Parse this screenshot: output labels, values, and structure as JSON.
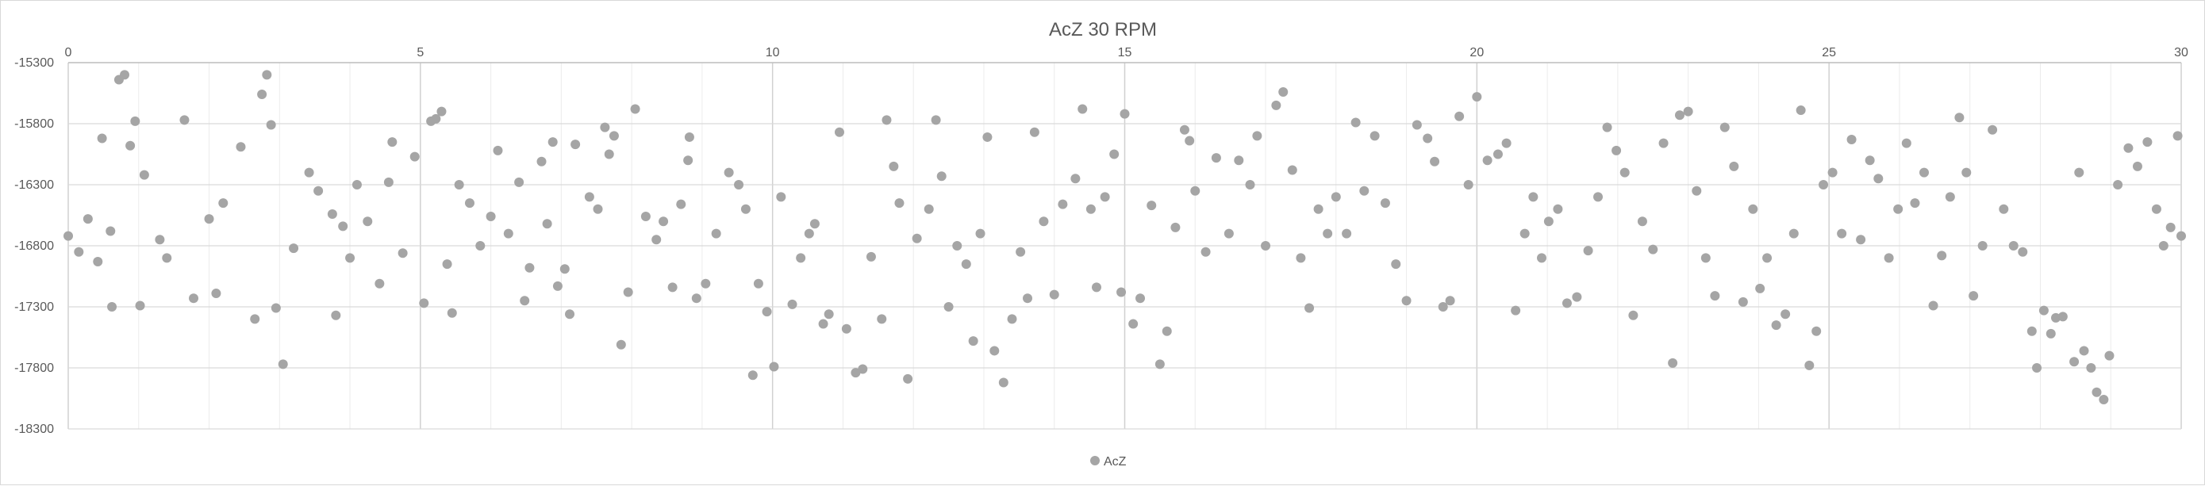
{
  "chart_data": {
    "type": "scatter",
    "title": "AcZ 30 RPM",
    "xlabel": "",
    "ylabel": "",
    "xlim": [
      0,
      30
    ],
    "ylim": [
      -18300,
      -15300
    ],
    "x_ticks": [
      "0",
      "5",
      "10",
      "15",
      "20",
      "25",
      "30"
    ],
    "y_ticks": [
      "-15300",
      "-15800",
      "-16300",
      "-16800",
      "-17300",
      "-17800",
      "-18300"
    ],
    "x_minor_step": 1,
    "grid": true,
    "legend": "bottom",
    "series": [
      {
        "name": "AcZ",
        "color": "#a5a5a5",
        "points": [
          [
            0.0,
            -16720
          ],
          [
            0.15,
            -16850
          ],
          [
            0.28,
            -16580
          ],
          [
            0.42,
            -16930
          ],
          [
            0.48,
            -15920
          ],
          [
            0.6,
            -16680
          ],
          [
            0.62,
            -17300
          ],
          [
            0.72,
            -15440
          ],
          [
            0.8,
            -15400
          ],
          [
            0.88,
            -15980
          ],
          [
            0.95,
            -15780
          ],
          [
            1.02,
            -17290
          ],
          [
            1.08,
            -16220
          ],
          [
            1.3,
            -16750
          ],
          [
            1.4,
            -16900
          ],
          [
            1.65,
            -15770
          ],
          [
            1.78,
            -17230
          ],
          [
            2.0,
            -16580
          ],
          [
            2.1,
            -17190
          ],
          [
            2.2,
            -16450
          ],
          [
            2.45,
            -15990
          ],
          [
            2.65,
            -17400
          ],
          [
            2.75,
            -15560
          ],
          [
            2.82,
            -15400
          ],
          [
            2.88,
            -15810
          ],
          [
            2.95,
            -17310
          ],
          [
            3.05,
            -17770
          ],
          [
            3.2,
            -16820
          ],
          [
            3.42,
            -16200
          ],
          [
            3.55,
            -16350
          ],
          [
            3.75,
            -16540
          ],
          [
            3.8,
            -17370
          ],
          [
            3.9,
            -16640
          ],
          [
            4.0,
            -16900
          ],
          [
            4.1,
            -16300
          ],
          [
            4.25,
            -16600
          ],
          [
            4.42,
            -17110
          ],
          [
            4.55,
            -16280
          ],
          [
            4.6,
            -15950
          ],
          [
            4.75,
            -16860
          ],
          [
            4.92,
            -16070
          ],
          [
            5.05,
            -17270
          ],
          [
            5.15,
            -15780
          ],
          [
            5.22,
            -15760
          ],
          [
            5.3,
            -15700
          ],
          [
            5.38,
            -16950
          ],
          [
            5.45,
            -17350
          ],
          [
            5.55,
            -16300
          ],
          [
            5.7,
            -16450
          ],
          [
            5.85,
            -16800
          ],
          [
            6.0,
            -16560
          ],
          [
            6.1,
            -16020
          ],
          [
            6.25,
            -16700
          ],
          [
            6.4,
            -16280
          ],
          [
            6.48,
            -17250
          ],
          [
            6.55,
            -16980
          ],
          [
            6.72,
            -16110
          ],
          [
            6.8,
            -16620
          ],
          [
            6.88,
            -15950
          ],
          [
            6.95,
            -17130
          ],
          [
            7.05,
            -16990
          ],
          [
            7.12,
            -17360
          ],
          [
            7.2,
            -15970
          ],
          [
            7.4,
            -16400
          ],
          [
            7.52,
            -16500
          ],
          [
            7.62,
            -15830
          ],
          [
            7.68,
            -16050
          ],
          [
            7.75,
            -15900
          ],
          [
            7.85,
            -17610
          ],
          [
            7.95,
            -17180
          ],
          [
            8.05,
            -15680
          ],
          [
            8.2,
            -16560
          ],
          [
            8.35,
            -16750
          ],
          [
            8.45,
            -16600
          ],
          [
            8.58,
            -17140
          ],
          [
            8.7,
            -16460
          ],
          [
            8.8,
            -16100
          ],
          [
            8.82,
            -15910
          ],
          [
            8.92,
            -17230
          ],
          [
            9.05,
            -17110
          ],
          [
            9.2,
            -16700
          ],
          [
            9.38,
            -16200
          ],
          [
            9.52,
            -16300
          ],
          [
            9.62,
            -16500
          ],
          [
            9.72,
            -17860
          ],
          [
            9.8,
            -17110
          ],
          [
            9.92,
            -17340
          ],
          [
            10.02,
            -17790
          ],
          [
            10.12,
            -16400
          ],
          [
            10.28,
            -17280
          ],
          [
            10.4,
            -16900
          ],
          [
            10.52,
            -16700
          ],
          [
            10.6,
            -16620
          ],
          [
            10.72,
            -17440
          ],
          [
            10.8,
            -17360
          ],
          [
            10.95,
            -15870
          ],
          [
            11.05,
            -17480
          ],
          [
            11.18,
            -17840
          ],
          [
            11.28,
            -17810
          ],
          [
            11.4,
            -16890
          ],
          [
            11.55,
            -17400
          ],
          [
            11.62,
            -15770
          ],
          [
            11.72,
            -16150
          ],
          [
            11.8,
            -16450
          ],
          [
            11.92,
            -17890
          ],
          [
            12.05,
            -16740
          ],
          [
            12.22,
            -16500
          ],
          [
            12.32,
            -15770
          ],
          [
            12.4,
            -16230
          ],
          [
            12.5,
            -17300
          ],
          [
            12.62,
            -16800
          ],
          [
            12.75,
            -16950
          ],
          [
            12.85,
            -17580
          ],
          [
            12.95,
            -16700
          ],
          [
            13.05,
            -15910
          ],
          [
            13.15,
            -17660
          ],
          [
            13.28,
            -17920
          ],
          [
            13.4,
            -17400
          ],
          [
            13.52,
            -16850
          ],
          [
            13.62,
            -17230
          ],
          [
            13.72,
            -15870
          ],
          [
            13.85,
            -16600
          ],
          [
            14.0,
            -17200
          ],
          [
            14.12,
            -16460
          ],
          [
            14.3,
            -16250
          ],
          [
            14.4,
            -15680
          ],
          [
            14.52,
            -16500
          ],
          [
            14.6,
            -17140
          ],
          [
            14.72,
            -16400
          ],
          [
            14.85,
            -16050
          ],
          [
            14.95,
            -17180
          ],
          [
            15.0,
            -15720
          ],
          [
            15.12,
            -17440
          ],
          [
            15.22,
            -17230
          ],
          [
            15.38,
            -16470
          ],
          [
            15.5,
            -17770
          ],
          [
            15.6,
            -17500
          ],
          [
            15.72,
            -16650
          ],
          [
            15.85,
            -15850
          ],
          [
            15.92,
            -15940
          ],
          [
            16.0,
            -16350
          ],
          [
            16.15,
            -16850
          ],
          [
            16.3,
            -16080
          ],
          [
            16.48,
            -16700
          ],
          [
            16.62,
            -16100
          ],
          [
            16.78,
            -16300
          ],
          [
            16.88,
            -15900
          ],
          [
            17.0,
            -16800
          ],
          [
            17.15,
            -15650
          ],
          [
            17.25,
            -15540
          ],
          [
            17.38,
            -16180
          ],
          [
            17.5,
            -16900
          ],
          [
            17.62,
            -17310
          ],
          [
            17.75,
            -16500
          ],
          [
            17.88,
            -16700
          ],
          [
            18.0,
            -16400
          ],
          [
            18.15,
            -16700
          ],
          [
            18.28,
            -15790
          ],
          [
            18.4,
            -16350
          ],
          [
            18.55,
            -15900
          ],
          [
            18.7,
            -16450
          ],
          [
            18.85,
            -16950
          ],
          [
            19.0,
            -17250
          ],
          [
            19.15,
            -15810
          ],
          [
            19.3,
            -15920
          ],
          [
            19.4,
            -16110
          ],
          [
            19.52,
            -17300
          ],
          [
            19.62,
            -17250
          ],
          [
            19.75,
            -15740
          ],
          [
            19.88,
            -16300
          ],
          [
            20.0,
            -15580
          ],
          [
            20.15,
            -16100
          ],
          [
            20.3,
            -16050
          ],
          [
            20.42,
            -15960
          ],
          [
            20.55,
            -17330
          ],
          [
            20.68,
            -16700
          ],
          [
            20.8,
            -16400
          ],
          [
            20.92,
            -16900
          ],
          [
            21.02,
            -16600
          ],
          [
            21.15,
            -16500
          ],
          [
            21.28,
            -17270
          ],
          [
            21.42,
            -17220
          ],
          [
            21.58,
            -16840
          ],
          [
            21.72,
            -16400
          ],
          [
            21.85,
            -15830
          ],
          [
            21.98,
            -16020
          ],
          [
            22.1,
            -16200
          ],
          [
            22.22,
            -17370
          ],
          [
            22.35,
            -16600
          ],
          [
            22.5,
            -16830
          ],
          [
            22.65,
            -15960
          ],
          [
            22.78,
            -17760
          ],
          [
            22.88,
            -15730
          ],
          [
            23.0,
            -15700
          ],
          [
            23.12,
            -16350
          ],
          [
            23.25,
            -16900
          ],
          [
            23.38,
            -17210
          ],
          [
            23.52,
            -15830
          ],
          [
            23.65,
            -16150
          ],
          [
            23.78,
            -17260
          ],
          [
            23.92,
            -16500
          ],
          [
            24.02,
            -17150
          ],
          [
            24.12,
            -16900
          ],
          [
            24.25,
            -17450
          ],
          [
            24.38,
            -17360
          ],
          [
            24.5,
            -16700
          ],
          [
            24.6,
            -15690
          ],
          [
            24.72,
            -17780
          ],
          [
            24.82,
            -17500
          ],
          [
            24.92,
            -16300
          ],
          [
            25.05,
            -16200
          ],
          [
            25.18,
            -16700
          ],
          [
            25.32,
            -15930
          ],
          [
            25.45,
            -16750
          ],
          [
            25.58,
            -16100
          ],
          [
            25.7,
            -16250
          ],
          [
            25.85,
            -16900
          ],
          [
            25.98,
            -16500
          ],
          [
            26.1,
            -15960
          ],
          [
            26.22,
            -16450
          ],
          [
            26.35,
            -16200
          ],
          [
            26.48,
            -17290
          ],
          [
            26.6,
            -16880
          ],
          [
            26.72,
            -16400
          ],
          [
            26.85,
            -15750
          ],
          [
            26.95,
            -16200
          ],
          [
            27.05,
            -17210
          ],
          [
            27.18,
            -16800
          ],
          [
            27.32,
            -15850
          ],
          [
            27.48,
            -16500
          ],
          [
            27.62,
            -16800
          ],
          [
            27.75,
            -16850
          ],
          [
            27.88,
            -17500
          ],
          [
            27.95,
            -17800
          ],
          [
            28.05,
            -17330
          ],
          [
            28.15,
            -17520
          ],
          [
            28.22,
            -17390
          ],
          [
            28.32,
            -17380
          ],
          [
            28.48,
            -17750
          ],
          [
            28.55,
            -16200
          ],
          [
            28.62,
            -17660
          ],
          [
            28.72,
            -17800
          ],
          [
            28.8,
            -18000
          ],
          [
            28.9,
            -18060
          ],
          [
            28.98,
            -17700
          ],
          [
            29.1,
            -16300
          ],
          [
            29.25,
            -16000
          ],
          [
            29.38,
            -16150
          ],
          [
            29.52,
            -15950
          ],
          [
            29.65,
            -16500
          ],
          [
            29.75,
            -16800
          ],
          [
            29.85,
            -16650
          ],
          [
            29.95,
            -15900
          ],
          [
            30.0,
            -16720
          ]
        ]
      }
    ]
  }
}
